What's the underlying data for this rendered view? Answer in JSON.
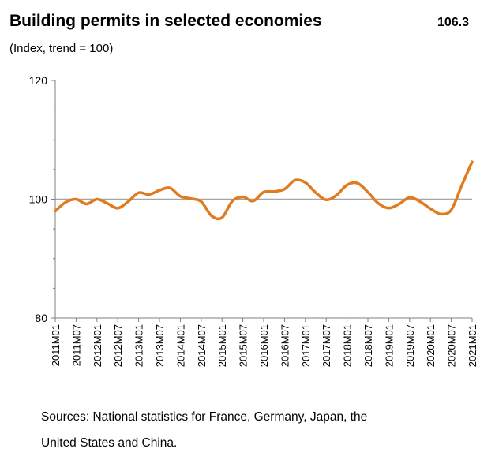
{
  "chart_data": {
    "type": "line",
    "title": "Building permits in selected economies",
    "subtitle": "(Index, trend = 100)",
    "annotation": "106.3",
    "notes": [
      "Sources: National statistics for France, Germany, Japan, the",
      "United States and China."
    ],
    "categories": [
      "2011M01",
      null,
      "2011M07",
      null,
      "2012M01",
      null,
      "2012M07",
      null,
      "2013M01",
      null,
      "2013M07",
      null,
      "2014M01",
      null,
      "2014M07",
      null,
      "2015M01",
      null,
      "2015M07",
      null,
      "2016M01",
      null,
      "2016M07",
      null,
      "2017M01",
      null,
      "2017M07",
      null,
      "2018M01",
      null,
      "2018M07",
      null,
      "2019M01",
      null,
      "2019M07",
      null,
      "2020M01",
      null,
      "2020M07",
      null,
      "2021M01"
    ],
    "series": [
      {
        "color": "#e07b1f",
        "values": [
          98.0,
          99.5,
          100,
          99.2,
          100,
          99.3,
          98.5,
          99.6,
          101.1,
          100.8,
          101.5,
          101.9,
          100.5,
          100.1,
          99.6,
          97.2,
          96.9,
          99.7,
          100.4,
          99.7,
          101.2,
          101.3,
          101.7,
          103.2,
          102.8,
          101.1,
          99.9,
          100.7,
          102.4,
          102.7,
          101.2,
          99.3,
          98.5,
          99.2,
          100.3,
          99.6,
          98.4,
          97.5,
          98.2,
          102.3,
          106.3
        ]
      }
    ],
    "ylim": [
      80,
      120
    ],
    "yticks": [
      80,
      100,
      120
    ],
    "yticks_minor": [
      85,
      90,
      95,
      105,
      110,
      115
    ],
    "reference_line": 100,
    "reference_color": "#a6a6a6"
  }
}
